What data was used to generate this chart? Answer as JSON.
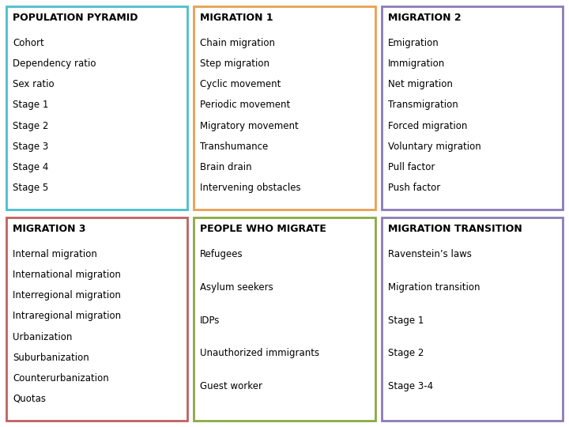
{
  "boxes": [
    {
      "title": "POPULATION PYRAMID",
      "items": [
        "Cohort",
        "Dependency ratio",
        "Sex ratio",
        "Stage 1",
        "Stage 2",
        "Stage 3",
        "Stage 4",
        "Stage 5"
      ],
      "border_color": "#4bbfcc",
      "col": 0,
      "row": 0
    },
    {
      "title": "MIGRATION 1",
      "items": [
        "Chain migration",
        "Step migration",
        "Cyclic movement",
        "Periodic movement",
        "Migratory movement",
        "Transhumance",
        "Brain drain",
        "Intervening obstacles"
      ],
      "border_color": "#e8a050",
      "col": 1,
      "row": 0
    },
    {
      "title": "MIGRATION 2",
      "items": [
        "Emigration",
        "Immigration",
        "Net migration",
        "Transmigration",
        "Forced migration",
        "Voluntary migration",
        "Pull factor",
        "Push factor"
      ],
      "border_color": "#8b7bb5",
      "col": 2,
      "row": 0
    },
    {
      "title": "MIGRATION 3",
      "items": [
        "Internal migration",
        "International migration",
        "Interregional migration",
        "Intraregional migration",
        "Urbanization",
        "Suburbanization",
        "Counterurbanization",
        "Quotas"
      ],
      "border_color": "#c06060",
      "col": 0,
      "row": 1
    },
    {
      "title": "PEOPLE WHO MIGRATE",
      "items": [
        "Refugees",
        "Asylum seekers",
        "IDPs",
        "Unauthorized immigrants",
        "Guest worker"
      ],
      "border_color": "#8aaa44",
      "col": 1,
      "row": 1
    },
    {
      "title": "MIGRATION TRANSITION",
      "items": [
        "Ravenstein’s laws",
        "Migration transition",
        "Stage 1",
        "Stage 2",
        "Stage 3-4"
      ],
      "border_color": "#8b7bb5",
      "col": 2,
      "row": 1
    }
  ],
  "bg_color": "#ffffff",
  "title_fontsize": 9,
  "item_fontsize": 8.5,
  "border_linewidth": 2.0
}
